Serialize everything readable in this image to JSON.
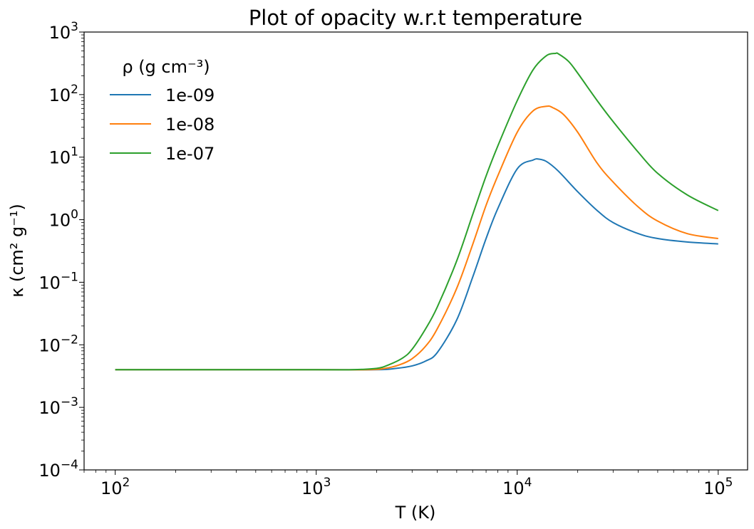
{
  "chart_data": {
    "type": "line",
    "title": "Plot of opacity w.r.t temperature",
    "xlabel": "T (K)",
    "ylabel": "κ (cm² g⁻¹)",
    "xscale": "log",
    "yscale": "log",
    "xlim": [
      70,
      140000
    ],
    "ylim": [
      0.0001,
      1000
    ],
    "x_ticks": [
      {
        "base": "10",
        "exp": "2",
        "value": 100
      },
      {
        "base": "10",
        "exp": "3",
        "value": 1000
      },
      {
        "base": "10",
        "exp": "4",
        "value": 10000
      },
      {
        "base": "10",
        "exp": "5",
        "value": 100000
      }
    ],
    "y_ticks": [
      {
        "base": "10",
        "exp": "−4",
        "value": 0.0001
      },
      {
        "base": "10",
        "exp": "−3",
        "value": 0.001
      },
      {
        "base": "10",
        "exp": "−2",
        "value": 0.01
      },
      {
        "base": "10",
        "exp": "−1",
        "value": 0.1
      },
      {
        "base": "10",
        "exp": "0",
        "value": 1
      },
      {
        "base": "10",
        "exp": "1",
        "value": 10
      },
      {
        "base": "10",
        "exp": "2",
        "value": 100
      },
      {
        "base": "10",
        "exp": "3",
        "value": 1000
      }
    ],
    "grid": false,
    "legend": {
      "title": "ρ (g cm⁻³)",
      "placement": "top-left",
      "frame": false
    },
    "series": [
      {
        "name": "1e-09",
        "color": "#1f77b4",
        "x": [
          100,
          1000,
          2000,
          2500,
          3000,
          3500,
          4000,
          5000,
          6000,
          7000,
          8000,
          10000,
          12000,
          12800,
          14000,
          16000,
          20000,
          25000,
          30000,
          40000,
          50000,
          70000,
          100000
        ],
        "y": [
          0.004,
          0.004,
          0.004,
          0.0042,
          0.0046,
          0.0055,
          0.0075,
          0.025,
          0.12,
          0.5,
          1.5,
          6.5,
          9.0,
          9.3,
          8.5,
          6.0,
          2.8,
          1.4,
          0.9,
          0.6,
          0.5,
          0.44,
          0.41
        ]
      },
      {
        "name": "1e-08",
        "color": "#ff7f0e",
        "x": [
          100,
          1000,
          1800,
          2200,
          2600,
          3000,
          3500,
          4000,
          5000,
          6000,
          7000,
          8000,
          10000,
          12000,
          14000,
          15000,
          17000,
          20000,
          25000,
          30000,
          40000,
          50000,
          70000,
          100000
        ],
        "y": [
          0.004,
          0.004,
          0.004,
          0.0042,
          0.0048,
          0.006,
          0.0095,
          0.018,
          0.08,
          0.4,
          1.7,
          5.0,
          25,
          55,
          65,
          62,
          48,
          25,
          8.0,
          4.0,
          1.6,
          0.95,
          0.6,
          0.5
        ]
      },
      {
        "name": "1e-07",
        "color": "#2ca02c",
        "x": [
          100,
          1000,
          1500,
          2000,
          2300,
          2700,
          3000,
          3500,
          4000,
          5000,
          6000,
          7000,
          8000,
          10000,
          12000,
          14000,
          15500,
          16000,
          18000,
          20000,
          25000,
          30000,
          40000,
          50000,
          70000,
          100000
        ],
        "y": [
          0.004,
          0.004,
          0.004,
          0.0042,
          0.0048,
          0.0062,
          0.0085,
          0.018,
          0.04,
          0.22,
          1.2,
          5.0,
          15,
          80,
          250,
          420,
          455,
          450,
          340,
          220,
          80,
          37,
          12,
          5.5,
          2.5,
          1.4
        ]
      }
    ]
  }
}
